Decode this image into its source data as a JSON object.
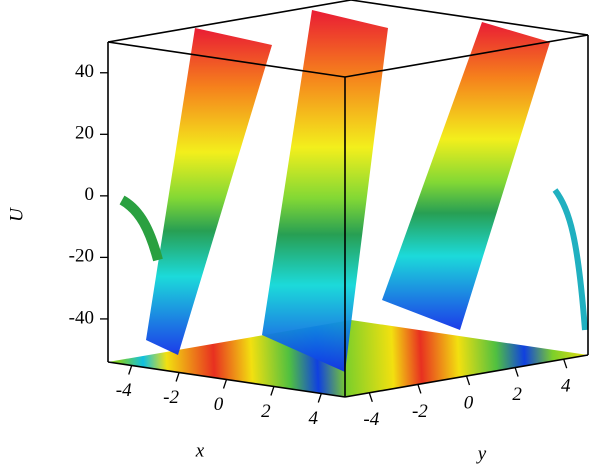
{
  "chart_data": {
    "type": "surface",
    "xlabel": "x",
    "ylabel": "y",
    "zlabel": "U",
    "xlim": [
      -5,
      5
    ],
    "ylim": [
      -5,
      5
    ],
    "zlim": [
      -54,
      50
    ],
    "xticks": [
      -4,
      -2,
      0,
      2,
      4
    ],
    "yticks": [
      -4,
      -2,
      0,
      2,
      4
    ],
    "zticks": [
      -40,
      -20,
      0,
      20,
      40
    ]
  }
}
